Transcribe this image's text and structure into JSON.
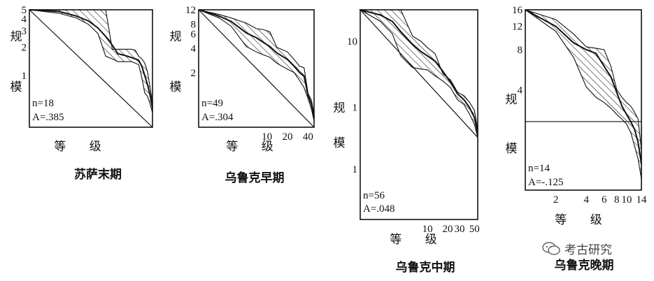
{
  "chart_data": [
    {
      "type": "area",
      "title": "苏萨末期",
      "xlabel": "等 级",
      "ylabel": "规 模",
      "log_scale": true,
      "y_ticks": [
        "5",
        "4",
        "3",
        "2",
        "1"
      ],
      "y_tick_values": [
        5,
        4,
        3,
        2,
        1
      ],
      "x_ticks": [],
      "ylim": [
        0.28,
        5
      ],
      "xlim": [
        1,
        18
      ],
      "n_label": "n=18",
      "a_label": "A=.385",
      "reference_line": {
        "x": [
          1,
          18
        ],
        "y": [
          5,
          0.28
        ]
      },
      "series": [
        {
          "x": [
            1,
            2,
            3,
            4,
            5,
            6,
            7,
            8,
            9,
            10,
            11,
            12,
            13,
            14,
            15,
            16,
            17,
            18
          ],
          "values": [
            5,
            5,
            5,
            5,
            5,
            5,
            1.9,
            1.9,
            1.9,
            1.9,
            1.9,
            1.85,
            1.6,
            1.5,
            1.35,
            1.1,
            0.75,
            0.5
          ]
        },
        {
          "x": [
            1,
            2,
            3,
            4,
            5,
            6,
            7,
            8,
            9,
            10,
            11,
            12,
            13,
            14,
            15,
            16,
            17,
            18
          ],
          "values": [
            5,
            4.6,
            4.1,
            3.5,
            2.8,
            1.6,
            1.5,
            1.4,
            1.4,
            1.4,
            1.4,
            1.35,
            1.3,
            0.95,
            0.65,
            0.6,
            0.5,
            0.4
          ]
        },
        {
          "x": [
            1,
            2,
            3,
            4,
            5,
            6,
            7,
            8,
            9,
            10,
            11,
            12,
            13,
            14,
            15,
            16,
            17,
            18
          ],
          "values": [
            5,
            4.8,
            4.3,
            3.8,
            3.2,
            2.6,
            2.1,
            1.7,
            1.65,
            1.6,
            1.55,
            1.5,
            1.45,
            1.25,
            1.0,
            0.8,
            0.62,
            0.45
          ]
        }
      ]
    },
    {
      "type": "area",
      "title": "乌鲁克早期",
      "xlabel": "等 级",
      "ylabel": "规 模",
      "log_scale": true,
      "y_ticks": [
        "12",
        "8",
        "6",
        "4",
        "2"
      ],
      "y_tick_values": [
        12,
        8,
        6,
        4,
        2
      ],
      "x_ticks": [
        "10",
        "20",
        "40"
      ],
      "x_tick_values": [
        10,
        20,
        40
      ],
      "ylim": [
        0.42,
        12
      ],
      "xlim": [
        1,
        49
      ],
      "n_label": "n=49",
      "a_label": "A=.304",
      "reference_line": {
        "x": [
          1,
          49
        ],
        "y": [
          12,
          0.42
        ]
      },
      "series": [
        {
          "x": [
            1,
            2,
            3,
            5,
            7,
            9,
            11,
            14,
            20,
            25,
            30,
            35,
            40,
            45,
            49
          ],
          "values": [
            12,
            10.5,
            9.5,
            8.2,
            7,
            6.8,
            6.4,
            4.1,
            3.6,
            2.9,
            2.4,
            2.3,
            1.1,
            0.9,
            0.6
          ]
        },
        {
          "x": [
            1,
            2,
            3,
            5,
            7,
            9,
            11,
            14,
            20,
            25,
            30,
            35,
            40,
            45,
            49
          ],
          "values": [
            12,
            9.5,
            7.5,
            4.2,
            3.6,
            3.3,
            3.1,
            2.6,
            2.2,
            2.0,
            1.6,
            1.3,
            0.95,
            0.7,
            0.5
          ]
        },
        {
          "x": [
            1,
            2,
            3,
            5,
            7,
            9,
            11,
            14,
            20,
            25,
            30,
            35,
            40,
            45,
            49
          ],
          "values": [
            12,
            10,
            8.6,
            6.2,
            5.4,
            4.7,
            4.2,
            3.5,
            2.9,
            2.4,
            2.0,
            1.8,
            1.05,
            0.8,
            0.55
          ]
        }
      ]
    },
    {
      "type": "area",
      "title": "乌鲁克中期",
      "xlabel": "等 级",
      "ylabel": "规 模",
      "log_scale": true,
      "y_ticks": [
        "10",
        "1",
        "1"
      ],
      "y_tick_values": [
        10,
        1,
        1
      ],
      "x_ticks": [
        "10",
        "20",
        "30",
        "50"
      ],
      "x_tick_values": [
        10,
        20,
        30,
        50
      ],
      "ylim": [
        0.02,
        30
      ],
      "xlim": [
        1,
        56
      ],
      "n_label": "n=56",
      "a_label": "A=.048",
      "reference_line": {
        "x": [
          1,
          56
        ],
        "y": [
          30,
          0.35
        ]
      },
      "series": [
        {
          "x": [
            1,
            2,
            3,
            4,
            6,
            8,
            10,
            13,
            17,
            22,
            28,
            35,
            42,
            50,
            56
          ],
          "values": [
            30,
            30,
            30,
            30,
            12,
            10,
            8,
            6.5,
            3.2,
            2.6,
            1.7,
            1.5,
            1.2,
            0.9,
            0.45
          ]
        },
        {
          "x": [
            1,
            2,
            3,
            4,
            6,
            8,
            10,
            13,
            17,
            22,
            28,
            35,
            42,
            50,
            56
          ],
          "values": [
            30,
            20,
            13,
            6,
            4,
            3.8,
            3.7,
            3.0,
            2.5,
            2.0,
            1.3,
            1.1,
            0.8,
            0.55,
            0.35
          ]
        },
        {
          "x": [
            1,
            2,
            3,
            4,
            6,
            8,
            10,
            13,
            17,
            22,
            28,
            35,
            42,
            50,
            56
          ],
          "values": [
            30,
            25,
            20,
            14,
            9,
            7,
            6,
            5,
            3.5,
            2.4,
            1.6,
            1.3,
            1.0,
            0.7,
            0.4
          ]
        }
      ]
    },
    {
      "type": "area",
      "title": "乌鲁克晚期",
      "xlabel": "等 级",
      "ylabel": "规 模",
      "log_scale": true,
      "y_ticks": [
        "16",
        "12",
        "8",
        "4"
      ],
      "y_tick_values": [
        16,
        12,
        8,
        4
      ],
      "x_ticks": [
        "2",
        "4",
        "6",
        "8",
        "10",
        "14"
      ],
      "x_tick_values": [
        2,
        4,
        6,
        8,
        10,
        14
      ],
      "ylim": [
        0.7,
        16
      ],
      "xlim": [
        1,
        14
      ],
      "n_label": "n=14",
      "a_label": "A=-.125",
      "reference_line": {
        "x": [
          1,
          14
        ],
        "y": [
          2.3,
          2.3
        ]
      },
      "series": [
        {
          "x": [
            1,
            2,
            3,
            4,
            5,
            6,
            7,
            8,
            9,
            10,
            11,
            12,
            13,
            14
          ],
          "values": [
            16,
            13.5,
            10.5,
            8.4,
            8.2,
            8.0,
            6.0,
            4.0,
            3.5,
            3.2,
            3.0,
            2.7,
            2.4,
            1.4
          ]
        },
        {
          "x": [
            1,
            2,
            3,
            4,
            5,
            6,
            7,
            8,
            9,
            10,
            11,
            12,
            13,
            14
          ],
          "values": [
            16,
            11,
            7.0,
            4.2,
            3.5,
            3.2,
            2.9,
            2.6,
            2.4,
            2.2,
            1.9,
            1.5,
            1.2,
            0.85
          ]
        },
        {
          "x": [
            1,
            2,
            3,
            4,
            5,
            6,
            7,
            8,
            9,
            10,
            11,
            12,
            13,
            14
          ],
          "values": [
            16,
            12,
            9.0,
            8.0,
            7.5,
            6.0,
            5.0,
            3.8,
            3.0,
            2.6,
            2.3,
            2.0,
            1.6,
            1.1
          ]
        }
      ]
    }
  ],
  "watermark": {
    "text": "考古研究",
    "icon": "wechat-icon"
  }
}
